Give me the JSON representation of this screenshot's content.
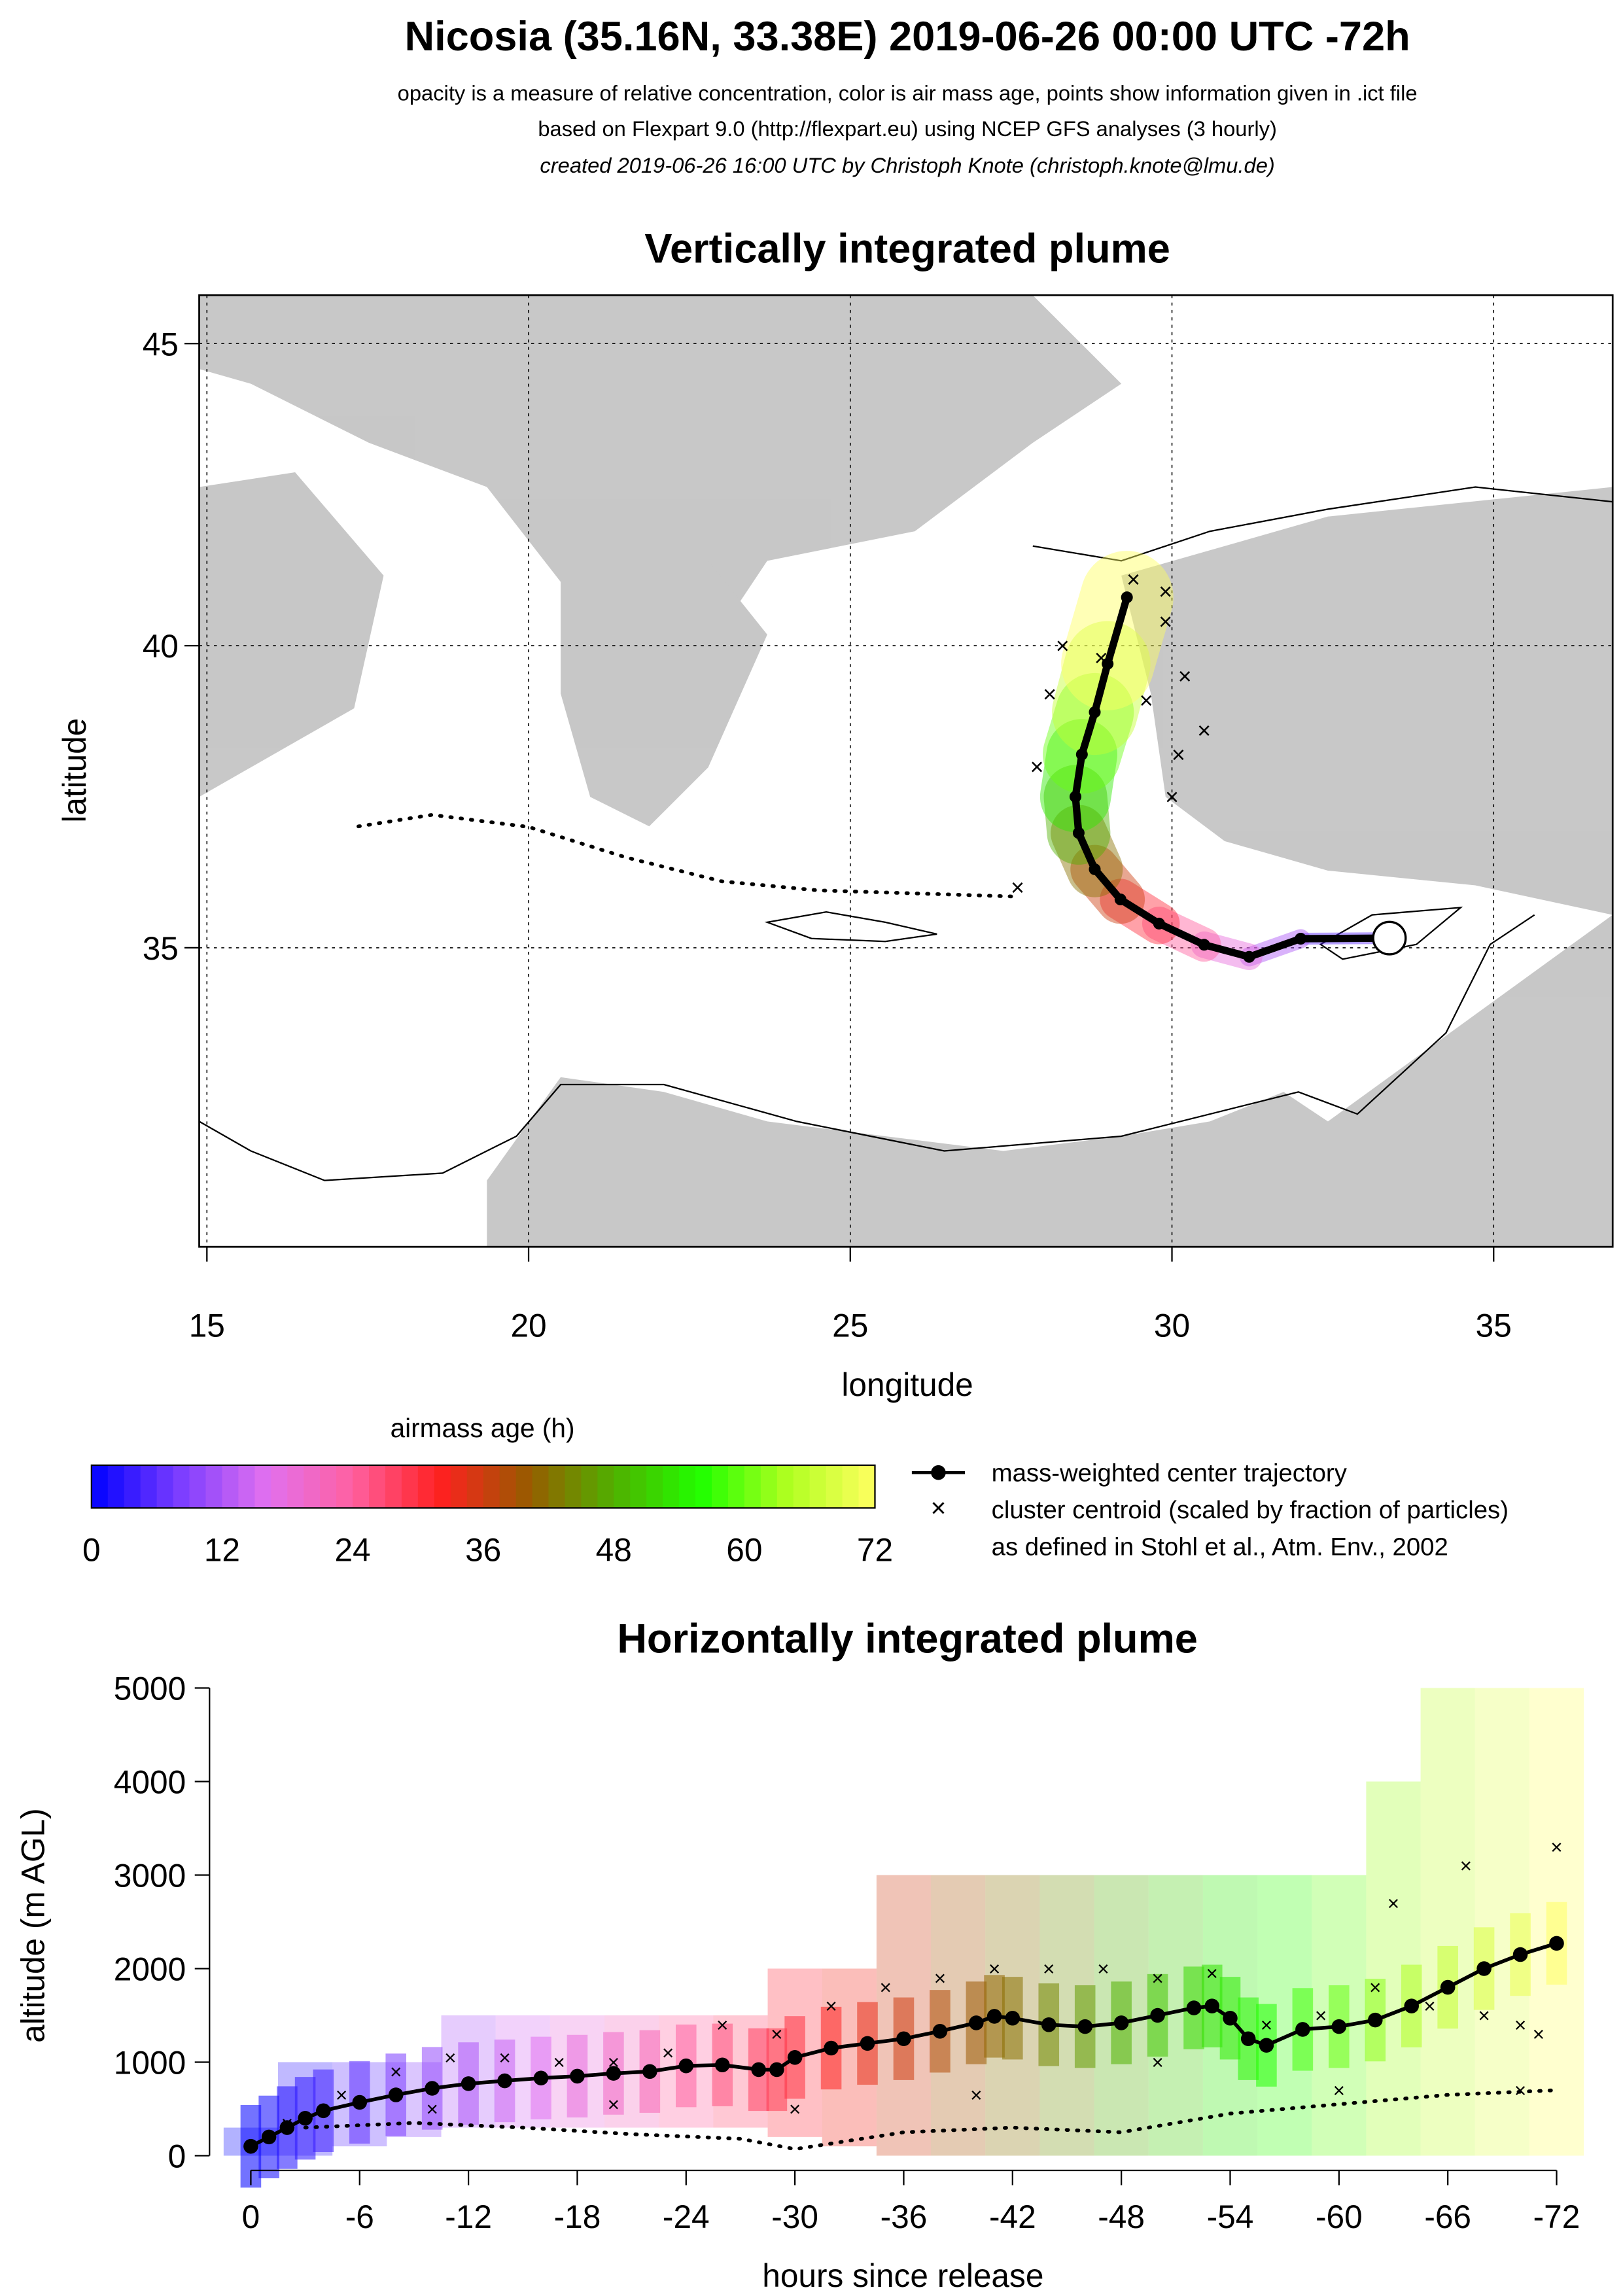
{
  "header": {
    "title": "Nicosia (35.16N, 33.38E) 2019-06-26 00:00 UTC -72h",
    "lines": [
      "opacity is a measure of relative concentration, color is air mass age, points show information given in .ict file",
      "based on Flexpart 9.0 (http://flexpart.eu) using NCEP GFS analyses (3 hourly)",
      "created 2019-06-26 16:00 UTC by Christoph Knote (christoph.knote@lmu.de)"
    ]
  },
  "colormap": [
    "#0000ff",
    "#7a3cff",
    "#e070f0",
    "#ff60a0",
    "#ff2020",
    "#9a5a00",
    "#50b000",
    "#20ff00",
    "#b0ff20",
    "#ffff60"
  ],
  "chart_data": [
    {
      "type": "map",
      "title": "Vertically integrated plume",
      "xlabel": "longitude",
      "ylabel": "latitude",
      "xlim": [
        14.88,
        36.85
      ],
      "ylim": [
        30.05,
        45.8
      ],
      "xticks": [
        15,
        20,
        25,
        30,
        35
      ],
      "yticks": [
        35,
        40,
        45
      ],
      "grid": true,
      "site": {
        "lon": 33.38,
        "lat": 35.16
      },
      "track": {
        "age": [
          0,
          6,
          12,
          18,
          24,
          30,
          36,
          42,
          48,
          54,
          60,
          66,
          72
        ],
        "lon": [
          33.38,
          32.0,
          31.2,
          30.5,
          29.8,
          29.2,
          28.8,
          28.55,
          28.5,
          28.6,
          28.8,
          29.0,
          29.3
        ],
        "lat": [
          35.16,
          35.15,
          34.85,
          35.05,
          35.4,
          35.8,
          36.3,
          36.9,
          37.5,
          38.2,
          38.9,
          39.7,
          40.8
        ]
      },
      "secondary_track": {
        "lon": [
          27.5,
          26,
          24.5,
          23,
          21.5,
          20,
          18.5,
          17.3
        ],
        "lat": [
          35.85,
          35.9,
          35.95,
          36.1,
          36.5,
          37.0,
          37.2,
          37.0
        ]
      },
      "centroids": {
        "lon": [
          29.4,
          29.9,
          30.2,
          30.5,
          30.0,
          28.3,
          28.1,
          27.9,
          28.9,
          29.6,
          27.6,
          29.9,
          30.1
        ],
        "lat": [
          41.1,
          40.4,
          39.5,
          38.6,
          37.5,
          40.0,
          39.2,
          38.0,
          39.8,
          39.1,
          36.0,
          40.9,
          38.2
        ]
      }
    },
    {
      "type": "colorbar",
      "title": "airmass age (h)",
      "ticks": [
        0,
        12,
        24,
        36,
        48,
        60,
        72
      ],
      "lim": [
        0,
        72
      ],
      "legend": [
        "mass-weighted center trajectory",
        "cluster centroid (scaled by fraction of particles)",
        "as defined in Stohl et al., Atm. Env., 2002"
      ]
    },
    {
      "type": "profile",
      "title": "Horizontally integrated plume",
      "xlabel": "hours since release",
      "ylabel": "altitude (m AGL)",
      "xlim": [
        0,
        -72
      ],
      "ylim": [
        0,
        5000
      ],
      "xticks": [
        0,
        -6,
        -12,
        -18,
        -24,
        -30,
        -36,
        -42,
        -48,
        -54,
        -60,
        -66,
        -72
      ],
      "yticks": [
        0,
        1000,
        2000,
        3000,
        4000,
        5000
      ],
      "plume": {
        "x": [
          0,
          -3,
          -6,
          -9,
          -12,
          -15,
          -18,
          -21,
          -24,
          -27,
          -30,
          -33,
          -36,
          -39,
          -42,
          -45,
          -48,
          -51,
          -54,
          -57,
          -60,
          -63,
          -66,
          -69,
          -72
        ],
        "low": [
          0,
          0,
          100,
          200,
          300,
          300,
          300,
          300,
          300,
          300,
          200,
          100,
          0,
          0,
          0,
          0,
          0,
          0,
          0,
          0,
          0,
          0,
          0,
          0,
          0
        ],
        "high": [
          300,
          1000,
          1000,
          1000,
          1500,
          1500,
          1500,
          1500,
          1500,
          1500,
          2000,
          2000,
          3000,
          3000,
          3000,
          3000,
          3000,
          3000,
          3000,
          3000,
          3000,
          4000,
          5000,
          5000,
          5000
        ]
      },
      "center": {
        "x": [
          0,
          -1,
          -2,
          -3,
          -4,
          -6,
          -8,
          -10,
          -12,
          -14,
          -16,
          -18,
          -20,
          -22,
          -24,
          -26,
          -28,
          -29,
          -30,
          -32,
          -34,
          -36,
          -38,
          -40,
          -41,
          -42,
          -44,
          -46,
          -48,
          -50,
          -52,
          -53,
          -54,
          -55,
          -56,
          -58,
          -60,
          -62,
          -64,
          -66,
          -68,
          -70,
          -72
        ],
        "y": [
          100,
          200,
          300,
          400,
          480,
          570,
          650,
          720,
          770,
          800,
          830,
          850,
          880,
          900,
          960,
          970,
          920,
          920,
          1050,
          1150,
          1200,
          1250,
          1330,
          1420,
          1490,
          1470,
          1400,
          1380,
          1420,
          1500,
          1580,
          1600,
          1470,
          1250,
          1180,
          1350,
          1380,
          1450,
          1600,
          1800,
          2000,
          2150,
          2270
        ]
      },
      "centroids": {
        "x": [
          -2,
          -5,
          -8,
          -11,
          -14,
          -17,
          -20,
          -23,
          -26,
          -29,
          -32,
          -35,
          -38,
          -41,
          -44,
          -47,
          -50,
          -53,
          -56,
          -59,
          -62,
          -65,
          -68,
          -70,
          -71,
          -10,
          -20,
          -30,
          -40,
          -50,
          -60,
          -70,
          -63,
          -67,
          -72
        ],
        "y": [
          350,
          650,
          900,
          1050,
          1050,
          1000,
          1000,
          1100,
          1400,
          1300,
          1600,
          1800,
          1900,
          2000,
          2000,
          2000,
          1900,
          1950,
          1400,
          1500,
          1800,
          1600,
          1500,
          1400,
          1300,
          500,
          550,
          500,
          650,
          1000,
          700,
          700,
          2700,
          3100,
          3300
        ]
      },
      "lower": {
        "x": [
          -3,
          -9,
          -15,
          -21,
          -27,
          -30,
          -36,
          -42,
          -48,
          -54,
          -60,
          -66,
          -72
        ],
        "y": [
          300,
          350,
          300,
          230,
          180,
          70,
          250,
          300,
          250,
          450,
          550,
          650,
          700
        ]
      }
    }
  ]
}
